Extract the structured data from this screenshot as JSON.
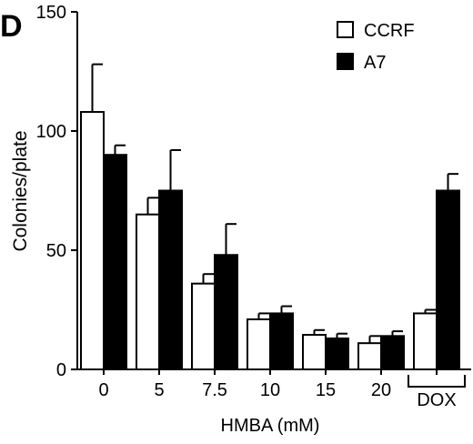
{
  "panel_label": "D",
  "chart_data": {
    "type": "bar",
    "categories": [
      "0",
      "5",
      "7.5",
      "10",
      "15",
      "20",
      ""
    ],
    "group_label": "DOX",
    "series": [
      {
        "name": "CCRF",
        "values": [
          108,
          65,
          36,
          21,
          14.5,
          11,
          23.5
        ],
        "errors": [
          20,
          7,
          4,
          2.5,
          2,
          3,
          1.5
        ],
        "fill": "#ffffff"
      },
      {
        "name": "A7",
        "values": [
          90,
          75,
          48,
          23.5,
          13,
          14,
          75
        ],
        "errors": [
          4,
          17,
          13,
          3,
          2,
          2,
          7
        ],
        "fill": "#000000"
      }
    ],
    "xlabel": "HMBA (mM)",
    "ylabel": "Colonies/plate",
    "ylim": [
      0,
      150
    ],
    "yticks": [
      "0",
      "50",
      "100",
      "150"
    ],
    "grid": false,
    "legend_position": "top-right"
  }
}
